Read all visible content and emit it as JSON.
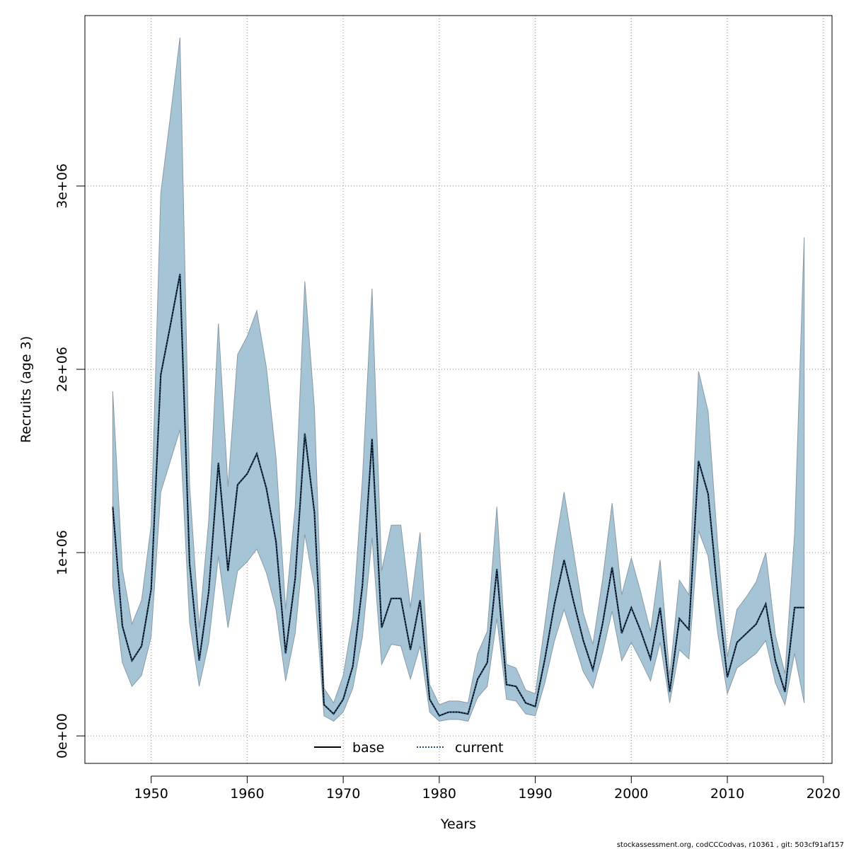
{
  "chart_data": {
    "type": "line",
    "title": "",
    "xlabel": "Years",
    "ylabel": "Recruits (age 3)",
    "xlim": [
      1943.1,
      2020.9
    ],
    "ylim": [
      -150000,
      3930000
    ],
    "x_ticks": [
      1950,
      1960,
      1970,
      1980,
      1990,
      2000,
      2010,
      2020
    ],
    "x_tick_labels": [
      "1950",
      "1960",
      "1970",
      "1980",
      "1990",
      "2000",
      "2010",
      "2020"
    ],
    "y_ticks": [
      0,
      1000000,
      2000000,
      3000000
    ],
    "y_tick_labels": [
      "0e+00",
      "1e+06",
      "2e+06",
      "3e+06"
    ],
    "grid": true,
    "legend": {
      "placement": "bottom",
      "entries": [
        "base",
        "current"
      ]
    },
    "colors": {
      "band_fill": "#a5c4d5",
      "band_edge": "#8a9aa6",
      "base_line": "#000000",
      "current_line": "#1f4e79",
      "grid": "#8c8c8c"
    },
    "x": [
      1946,
      1947,
      1948,
      1949,
      1950,
      1951,
      1952,
      1953,
      1954,
      1955,
      1956,
      1957,
      1958,
      1959,
      1960,
      1961,
      1962,
      1963,
      1964,
      1965,
      1966,
      1967,
      1968,
      1969,
      1970,
      1971,
      1972,
      1973,
      1974,
      1975,
      1976,
      1977,
      1978,
      1979,
      1980,
      1981,
      1982,
      1983,
      1984,
      1985,
      1986,
      1987,
      1988,
      1989,
      1990,
      1991,
      1992,
      1993,
      1994,
      1995,
      1996,
      1997,
      1998,
      1999,
      2000,
      2001,
      2002,
      2003,
      2004,
      2005,
      2006,
      2007,
      2008,
      2009,
      2010,
      2011,
      2012,
      2013,
      2014,
      2015,
      2016,
      2017,
      2018
    ],
    "series": [
      {
        "name": "base",
        "values": [
          1250000,
          600000,
          410000,
          490000,
          800000,
          1970000,
          2240000,
          2520000,
          940000,
          410000,
          790000,
          1490000,
          900000,
          1370000,
          1430000,
          1540000,
          1350000,
          1060000,
          450000,
          860000,
          1650000,
          1220000,
          170000,
          120000,
          200000,
          380000,
          820000,
          1620000,
          590000,
          750000,
          750000,
          470000,
          740000,
          200000,
          110000,
          130000,
          130000,
          120000,
          310000,
          400000,
          910000,
          280000,
          270000,
          180000,
          160000,
          420000,
          720000,
          960000,
          730000,
          520000,
          360000,
          610000,
          920000,
          560000,
          700000,
          570000,
          420000,
          700000,
          240000,
          640000,
          580000,
          1500000,
          1320000,
          770000,
          320000,
          510000,
          560000,
          610000,
          720000,
          410000,
          240000,
          700000,
          700000
        ]
      },
      {
        "name": "current",
        "values": [
          1250000,
          600000,
          410000,
          490000,
          800000,
          1970000,
          2240000,
          2520000,
          940000,
          410000,
          790000,
          1490000,
          900000,
          1370000,
          1430000,
          1540000,
          1350000,
          1060000,
          450000,
          860000,
          1650000,
          1220000,
          170000,
          120000,
          200000,
          380000,
          820000,
          1620000,
          590000,
          750000,
          750000,
          470000,
          740000,
          200000,
          110000,
          130000,
          130000,
          120000,
          310000,
          400000,
          910000,
          280000,
          270000,
          180000,
          160000,
          420000,
          720000,
          960000,
          730000,
          520000,
          360000,
          610000,
          920000,
          560000,
          700000,
          570000,
          420000,
          700000,
          240000,
          640000,
          580000,
          1500000,
          1320000,
          770000,
          320000,
          510000,
          560000,
          610000,
          720000,
          410000,
          240000,
          700000,
          700000
        ]
      }
    ],
    "band_upper": [
      1880000,
      910000,
      610000,
      740000,
      1150000,
      2960000,
      3380000,
      3810000,
      1370000,
      590000,
      1180000,
      2250000,
      1360000,
      2080000,
      2180000,
      2320000,
      2010000,
      1520000,
      690000,
      1250000,
      2480000,
      1790000,
      260000,
      180000,
      330000,
      640000,
      1400000,
      2440000,
      900000,
      1150000,
      1150000,
      700000,
      1110000,
      280000,
      170000,
      190000,
      190000,
      180000,
      450000,
      570000,
      1250000,
      390000,
      370000,
      250000,
      230000,
      610000,
      1010000,
      1330000,
      1000000,
      670000,
      500000,
      850000,
      1270000,
      770000,
      970000,
      780000,
      570000,
      960000,
      330000,
      850000,
      770000,
      1990000,
      1770000,
      1040000,
      430000,
      690000,
      760000,
      840000,
      1000000,
      550000,
      340000,
      1100000,
      2720000
    ],
    "band_lower": [
      820000,
      400000,
      270000,
      330000,
      540000,
      1330000,
      1500000,
      1670000,
      620000,
      270000,
      510000,
      980000,
      590000,
      900000,
      950000,
      1020000,
      890000,
      690000,
      300000,
      560000,
      1100000,
      810000,
      110000,
      80000,
      130000,
      260000,
      540000,
      1080000,
      390000,
      500000,
      490000,
      310000,
      490000,
      130000,
      80000,
      90000,
      90000,
      80000,
      210000,
      270000,
      640000,
      200000,
      190000,
      120000,
      110000,
      290000,
      520000,
      690000,
      520000,
      350000,
      260000,
      450000,
      680000,
      410000,
      510000,
      410000,
      300000,
      510000,
      180000,
      470000,
      420000,
      1120000,
      980000,
      560000,
      230000,
      370000,
      410000,
      450000,
      520000,
      290000,
      170000,
      450000,
      180000
    ]
  },
  "footnote": "stockassessment.org, codCCCodvas, r10361 , git: 503cf91af157"
}
